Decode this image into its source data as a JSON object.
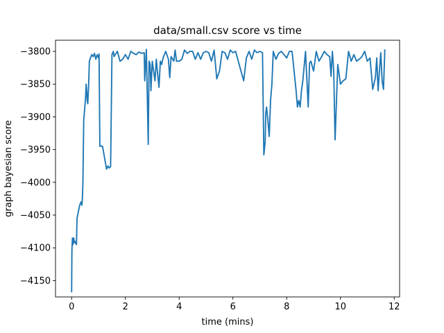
{
  "chart_data": {
    "type": "line",
    "title": "data/small.csv score vs time",
    "xlabel": "time (mins)",
    "ylabel": "graph bayesian score",
    "xlim": [
      -0.6,
      12.2
    ],
    "ylim": [
      -4175,
      -3783
    ],
    "xticks": [
      0,
      2,
      4,
      6,
      8,
      10,
      12
    ],
    "xtick_labels": [
      "0",
      "2",
      "4",
      "6",
      "8",
      "10",
      "12"
    ],
    "yticks": [
      -4150,
      -4100,
      -4050,
      -4000,
      -3950,
      -3900,
      -3850,
      -3800
    ],
    "ytick_labels": [
      "−4150",
      "−4100",
      "−4050",
      "−4000",
      "−3950",
      "−3900",
      "−3850",
      "−3800"
    ],
    "grid": false,
    "line_color": "#1f77b4",
    "series": [
      {
        "x": [
          0,
          0.01,
          0.03,
          0.05,
          0.08,
          0.1,
          0.12,
          0.15,
          0.18,
          0.2,
          0.25,
          0.3,
          0.35,
          0.38,
          0.4,
          0.42,
          0.45,
          0.47,
          0.5,
          0.52,
          0.54,
          0.56,
          0.58,
          0.6,
          0.63,
          0.66,
          0.7,
          0.75,
          0.8,
          0.85,
          0.9,
          0.95,
          1.0,
          1.02,
          1.05,
          1.08,
          1.12,
          1.15,
          1.3,
          1.35,
          1.4,
          1.45,
          1.5,
          1.55,
          1.58,
          1.62,
          1.7,
          1.8,
          1.9,
          2.0,
          2.1,
          2.2,
          2.3,
          2.4,
          2.5,
          2.6,
          2.7,
          2.72,
          2.78,
          2.85,
          2.88,
          2.92,
          2.95,
          3.0,
          3.05,
          3.1,
          3.15,
          3.2,
          3.25,
          3.3,
          3.35,
          3.4,
          3.5,
          3.6,
          3.65,
          3.7,
          3.8,
          3.85,
          3.9,
          4.0,
          4.1,
          4.2,
          4.3,
          4.4,
          4.5,
          4.6,
          4.7,
          4.8,
          4.9,
          5.0,
          5.1,
          5.2,
          5.3,
          5.4,
          5.5,
          5.6,
          5.7,
          5.8,
          5.9,
          6.0,
          6.1,
          6.2,
          6.3,
          6.4,
          6.5,
          6.6,
          6.7,
          6.8,
          6.9,
          7.0,
          7.1,
          7.15,
          7.2,
          7.22,
          7.25,
          7.3,
          7.35,
          7.4,
          7.45,
          7.5,
          7.6,
          7.7,
          7.8,
          7.9,
          8.0,
          8.1,
          8.2,
          8.3,
          8.35,
          8.4,
          8.45,
          8.5,
          8.55,
          8.6,
          8.7,
          8.8,
          8.85,
          8.9,
          9.0,
          9.1,
          9.2,
          9.3,
          9.4,
          9.5,
          9.6,
          9.65,
          9.7,
          9.75,
          9.8,
          9.9,
          10.0,
          10.1,
          10.2,
          10.3,
          10.4,
          10.5,
          10.6,
          10.7,
          10.8,
          10.9,
          11.0,
          11.1,
          11.2,
          11.3,
          11.35,
          11.4,
          11.45,
          11.5,
          11.55,
          11.6,
          11.65
        ],
        "y": [
          -4167,
          -4105,
          -4085,
          -4095,
          -4085,
          -4092,
          -4090,
          -4093,
          -4095,
          -4055,
          -4045,
          -4035,
          -4030,
          -4035,
          -4025,
          -4000,
          -3905,
          -3895,
          -3880,
          -3870,
          -3850,
          -3860,
          -3875,
          -3880,
          -3855,
          -3815,
          -3810,
          -3805,
          -3808,
          -3803,
          -3812,
          -3805,
          -3810,
          -3804,
          -3945,
          -3944,
          -3945,
          -3945,
          -3980,
          -3975,
          -3978,
          -3976,
          -3805,
          -3800,
          -3808,
          -3805,
          -3800,
          -3815,
          -3812,
          -3805,
          -3812,
          -3800,
          -3803,
          -3805,
          -3801,
          -3803,
          -3802,
          -3845,
          -3797,
          -3942,
          -3815,
          -3820,
          -3860,
          -3815,
          -3830,
          -3845,
          -3812,
          -3835,
          -3855,
          -3815,
          -3820,
          -3810,
          -3800,
          -3812,
          -3840,
          -3808,
          -3815,
          -3798,
          -3815,
          -3815,
          -3812,
          -3798,
          -3803,
          -3800,
          -3800,
          -3812,
          -3802,
          -3812,
          -3802,
          -3800,
          -3802,
          -3815,
          -3798,
          -3842,
          -3830,
          -3800,
          -3802,
          -3812,
          -3798,
          -3802,
          -3800,
          -3815,
          -3830,
          -3845,
          -3810,
          -3800,
          -3812,
          -3798,
          -3802,
          -3800,
          -3802,
          -3958,
          -3938,
          -3895,
          -3885,
          -3905,
          -3930,
          -3875,
          -3850,
          -3800,
          -3812,
          -3803,
          -3800,
          -3805,
          -3810,
          -3800,
          -3800,
          -3840,
          -3860,
          -3885,
          -3875,
          -3885,
          -3860,
          -3845,
          -3800,
          -3885,
          -3818,
          -3815,
          -3830,
          -3800,
          -3815,
          -3808,
          -3800,
          -3805,
          -3808,
          -3838,
          -3800,
          -3830,
          -3935,
          -3820,
          -3850,
          -3845,
          -3842,
          -3800,
          -3815,
          -3805,
          -3815,
          -3812,
          -3808,
          -3800,
          -3815,
          -3810,
          -3858,
          -3840,
          -3810,
          -3860,
          -3830,
          -3802,
          -3845,
          -3858,
          -3798
        ]
      }
    ]
  }
}
